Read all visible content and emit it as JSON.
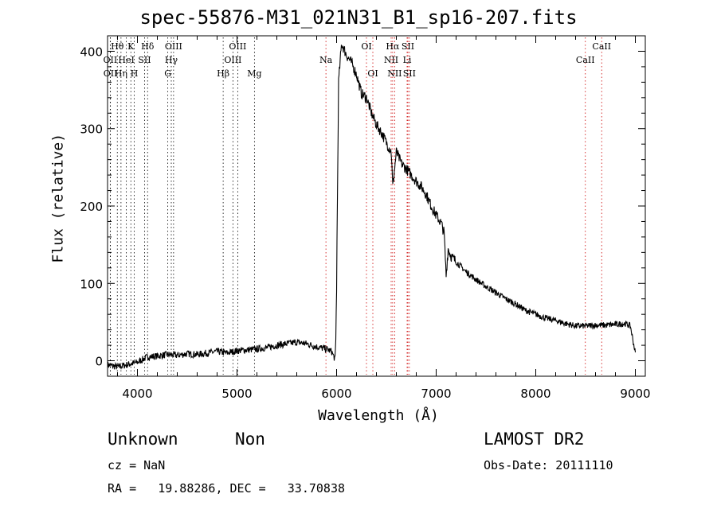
{
  "chart_data": {
    "type": "line",
    "title": "spec-55876-M31_021N31_B1_sp16-207.fits",
    "xlabel": "Wavelength (Å)",
    "ylabel": "Flux (relative)",
    "xlim": [
      3700,
      9100
    ],
    "ylim": [
      -20,
      420
    ],
    "xticks": [
      4000,
      5000,
      6000,
      7000,
      8000,
      9000
    ],
    "yticks": [
      0,
      100,
      200,
      300,
      400
    ],
    "grid": false,
    "series": [
      {
        "color": "#000000",
        "x": [
          3700,
          3800,
          3900,
          4000,
          4100,
          4200,
          4300,
          4400,
          4500,
          4600,
          4700,
          4800,
          4900,
          5000,
          5100,
          5200,
          5300,
          5400,
          5500,
          5600,
          5700,
          5800,
          5900,
          5950,
          5990,
          6000,
          6020,
          6050,
          6100,
          6150,
          6200,
          6250,
          6300,
          6350,
          6400,
          6450,
          6500,
          6550,
          6563,
          6580,
          6600,
          6650,
          6700,
          6750,
          6800,
          6850,
          6900,
          6950,
          7000,
          7050,
          7080,
          7100,
          7120,
          7150,
          7200,
          7300,
          7400,
          7500,
          7600,
          7700,
          7800,
          7900,
          8000,
          8100,
          8200,
          8300,
          8400,
          8500,
          8600,
          8700,
          8800,
          8900,
          8950,
          9000
        ],
        "y": [
          -5,
          -8,
          -5,
          -2,
          5,
          6,
          8,
          7,
          9,
          8,
          10,
          12,
          10,
          13,
          14,
          15,
          17,
          20,
          22,
          24,
          22,
          18,
          15,
          12,
          0,
          100,
          360,
          410,
          395,
          385,
          370,
          345,
          340,
          320,
          305,
          295,
          282,
          270,
          225,
          245,
          270,
          255,
          248,
          240,
          232,
          225,
          215,
          200,
          188,
          178,
          165,
          110,
          145,
          135,
          128,
          115,
          105,
          96,
          88,
          80,
          73,
          65,
          60,
          55,
          52,
          48,
          45,
          45,
          46,
          46,
          47,
          48,
          45,
          10
        ]
      }
    ],
    "lines": [
      {
        "label": "Hθ",
        "x": 3798,
        "row": 0,
        "color": "#000000"
      },
      {
        "label": "K",
        "x": 3934,
        "row": 0,
        "color": "#000000"
      },
      {
        "label": "Hδ",
        "x": 4102,
        "row": 0,
        "color": "#000000"
      },
      {
        "label": "OIII",
        "x": 4363,
        "row": 0,
        "color": "#000000"
      },
      {
        "label": "OIII",
        "x": 5007,
        "row": 0,
        "color": "#000000"
      },
      {
        "label": "OI",
        "x": 6300,
        "row": 0,
        "color": "#cc0000"
      },
      {
        "label": "Hα",
        "x": 6563,
        "row": 0,
        "color": "#cc0000"
      },
      {
        "label": "SII",
        "x": 6716,
        "row": 0,
        "color": "#cc0000"
      },
      {
        "label": "CaII",
        "x": 8662,
        "row": 0,
        "color": "#cc0000"
      },
      {
        "label": "OII",
        "x": 3727,
        "row": 1,
        "color": "#000000"
      },
      {
        "label": "HeI",
        "x": 3889,
        "row": 1,
        "color": "#000000"
      },
      {
        "label": "SII",
        "x": 4072,
        "row": 1,
        "color": "#000000"
      },
      {
        "label": "Hγ",
        "x": 4340,
        "row": 1,
        "color": "#000000"
      },
      {
        "label": "OIII",
        "x": 4959,
        "row": 1,
        "color": "#000000"
      },
      {
        "label": "Na",
        "x": 5893,
        "row": 1,
        "color": "#cc0000"
      },
      {
        "label": "NII",
        "x": 6548,
        "row": 1,
        "color": "#cc0000"
      },
      {
        "label": "Li",
        "x": 6708,
        "row": 1,
        "color": "#cc0000"
      },
      {
        "label": "CaII",
        "x": 8498,
        "row": 1,
        "color": "#cc0000"
      },
      {
        "label": "OII",
        "x": 3729,
        "row": 2,
        "color": "#000000"
      },
      {
        "label": "Hη",
        "x": 3835,
        "row": 2,
        "color": "#000000"
      },
      {
        "label": "H",
        "x": 3968,
        "row": 2,
        "color": "#000000"
      },
      {
        "label": "G",
        "x": 4305,
        "row": 2,
        "color": "#000000"
      },
      {
        "label": "Hβ",
        "x": 4861,
        "row": 2,
        "color": "#000000"
      },
      {
        "label": "Mg",
        "x": 5175,
        "row": 2,
        "color": "#000000"
      },
      {
        "label": "OI",
        "x": 6364,
        "row": 2,
        "color": "#cc0000"
      },
      {
        "label": "NII",
        "x": 6583,
        "row": 2,
        "color": "#cc0000"
      },
      {
        "label": "SII",
        "x": 6731,
        "row": 2,
        "color": "#cc0000"
      }
    ]
  },
  "info": {
    "class": "Unknown",
    "subclass": "Non",
    "survey": "LAMOST DR2",
    "cz": "cz = NaN",
    "obs_date": "Obs-Date: 20111110",
    "coords": "RA =   19.88286, DEC =   33.70838"
  }
}
